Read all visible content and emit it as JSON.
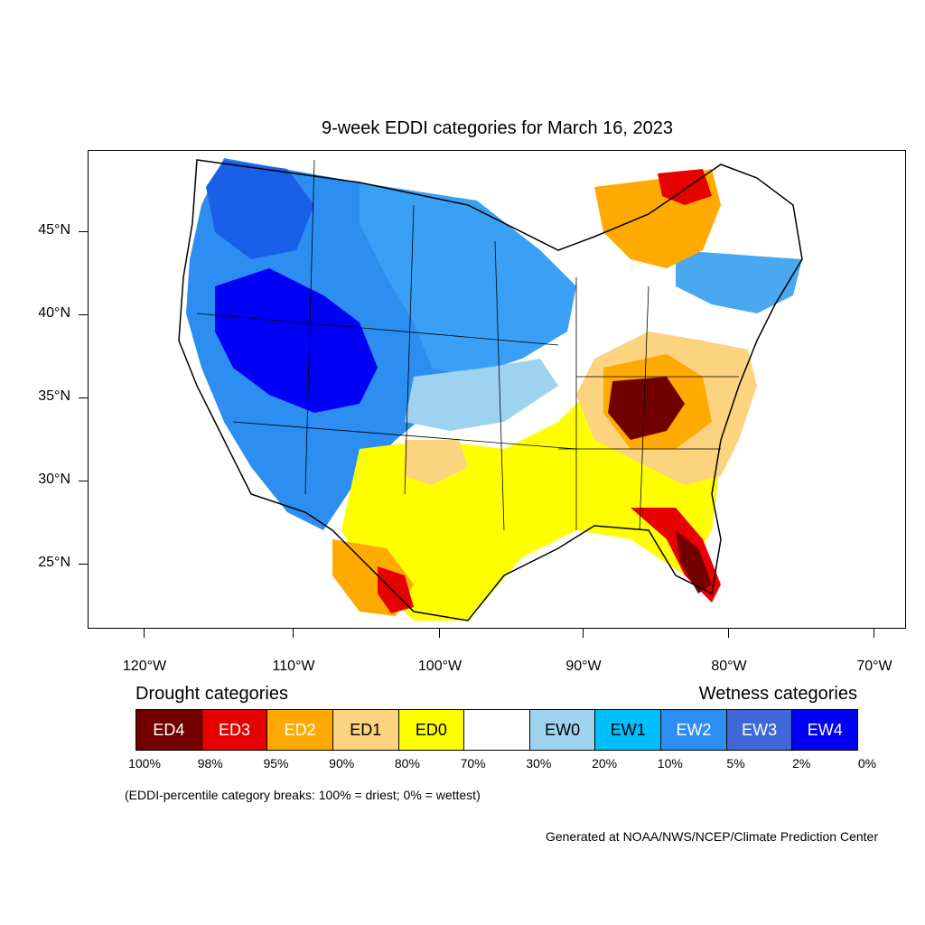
{
  "title": "9-week EDDI categories for March 16, 2023",
  "map": {
    "lat_labels": [
      "45°N",
      "40°N",
      "35°N",
      "30°N",
      "25°N"
    ],
    "lon_labels": [
      "120°W",
      "110°W",
      "100°W",
      "90°W",
      "80°W",
      "70°W"
    ]
  },
  "legend": {
    "drought_heading": "Drought categories",
    "wetness_heading": "Wetness categories",
    "categories": [
      {
        "label": "ED4",
        "color": "#730000",
        "text_color": "#ffffff"
      },
      {
        "label": "ED3",
        "color": "#e60000",
        "text_color": "#ffffff"
      },
      {
        "label": "ED2",
        "color": "#ffaa00",
        "text_color": "#ffffff"
      },
      {
        "label": "ED1",
        "color": "#fcd37f",
        "text_color": "#000000"
      },
      {
        "label": "ED0",
        "color": "#ffff00",
        "text_color": "#000000"
      },
      {
        "label": "",
        "color": "#ffffff",
        "text_color": "#000000"
      },
      {
        "label": "EW0",
        "color": "#9dd3ef",
        "text_color": "#000000"
      },
      {
        "label": "EW1",
        "color": "#00bfff",
        "text_color": "#000000"
      },
      {
        "label": "EW2",
        "color": "#2b8ef0",
        "text_color": "#ffffff"
      },
      {
        "label": "EW3",
        "color": "#4068d8",
        "text_color": "#ffffff"
      },
      {
        "label": "EW4",
        "color": "#0000f5",
        "text_color": "#ffffff"
      }
    ],
    "percentiles": [
      "100%",
      "98%",
      "95%",
      "90%",
      "80%",
      "70%",
      "30%",
      "20%",
      "10%",
      "5%",
      "2%",
      "0%"
    ],
    "note": "(EDDI-percentile category breaks: 100% = driest; 0% = wettest)"
  },
  "credit": "Generated at NOAA/NWS/NCEP/Climate Prediction Center"
}
